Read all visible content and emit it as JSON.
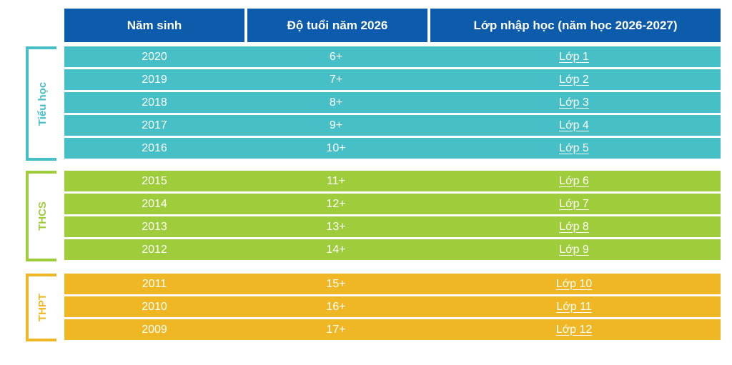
{
  "header": {
    "col1": "Năm sinh",
    "col2": "Độ tuổi năm 2026",
    "col3": "Lớp nhập học (năm học 2026-2027)"
  },
  "colors": {
    "header": "#0d5bab",
    "tieu_hoc": "#47bfc6",
    "thcs": "#9fcc3b",
    "thpt": "#f0b724"
  },
  "groups": [
    {
      "label": "Tiểu học",
      "rows": [
        {
          "year": "2020",
          "age": "6+",
          "grade": "Lớp 1"
        },
        {
          "year": "2019",
          "age": "7+",
          "grade": "Lớp 2"
        },
        {
          "year": "2018",
          "age": "8+",
          "grade": "Lớp 3"
        },
        {
          "year": "2017",
          "age": "9+",
          "grade": "Lớp 4"
        },
        {
          "year": "2016",
          "age": "10+",
          "grade": "Lớp 5"
        }
      ]
    },
    {
      "label": "THCS",
      "rows": [
        {
          "year": "2015",
          "age": "11+",
          "grade": "Lớp 6"
        },
        {
          "year": "2014",
          "age": "12+",
          "grade": "Lớp 7"
        },
        {
          "year": "2013",
          "age": "13+",
          "grade": "Lớp 8"
        },
        {
          "year": "2012",
          "age": "14+",
          "grade": "Lớp 9"
        }
      ]
    },
    {
      "label": "THPT",
      "rows": [
        {
          "year": "2011",
          "age": "15+",
          "grade": "Lớp 10"
        },
        {
          "year": "2010",
          "age": "16+",
          "grade": "Lớp 11"
        },
        {
          "year": "2009",
          "age": "17+",
          "grade": "Lớp 12"
        }
      ]
    }
  ]
}
